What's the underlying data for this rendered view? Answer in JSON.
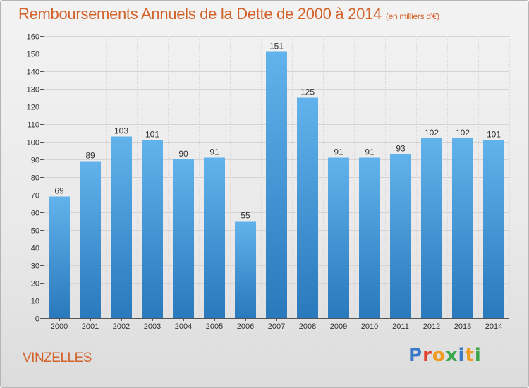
{
  "header": {
    "title": "Remboursements Annuels de la Dette de 2000 à 2014",
    "subtitle": "(en milliers d'€)"
  },
  "footer": {
    "place": "VINZELLES",
    "logo": [
      "P",
      "r",
      "o",
      "x",
      "i",
      "t",
      "i"
    ]
  },
  "colors": {
    "title": "#d2632b",
    "bar_top": "#62b2ec",
    "bar_bottom": "#2979bc"
  },
  "chart_data": {
    "type": "bar",
    "title": "Remboursements Annuels de la Dette de 2000 à 2014",
    "categories": [
      "2000",
      "2001",
      "2002",
      "2003",
      "2004",
      "2005",
      "2006",
      "2007",
      "2008",
      "2009",
      "2010",
      "2011",
      "2012",
      "2013",
      "2014"
    ],
    "values": [
      69,
      89,
      103,
      101,
      90,
      91,
      55,
      151,
      125,
      91,
      91,
      93,
      102,
      102,
      101
    ],
    "ylim": [
      0,
      160
    ],
    "yticks": [
      0,
      10,
      20,
      30,
      40,
      50,
      60,
      70,
      80,
      90,
      100,
      110,
      120,
      130,
      140,
      150,
      160
    ],
    "grid": true,
    "data_labels": true
  }
}
